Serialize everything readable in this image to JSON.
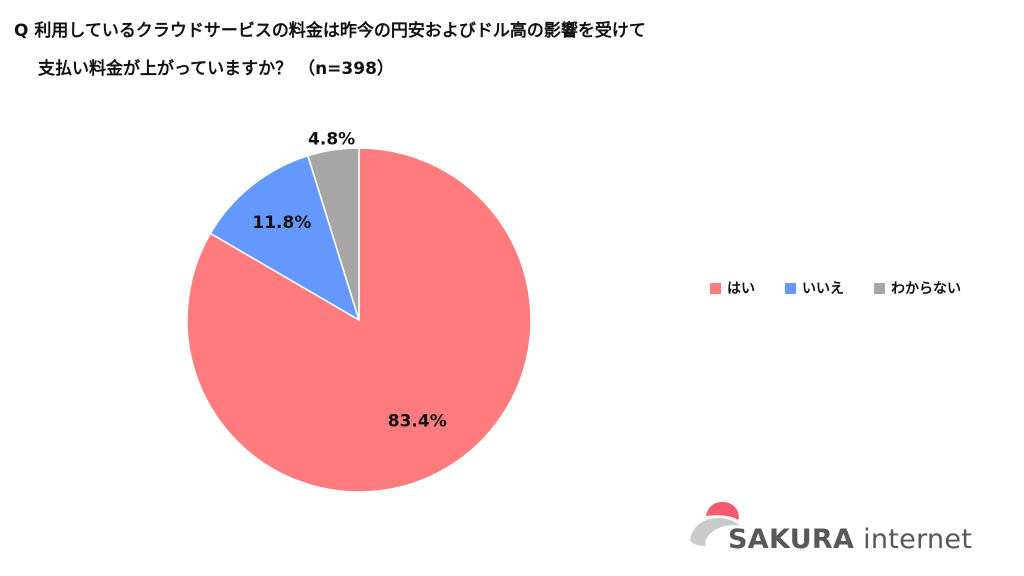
{
  "question": {
    "line1": "Q 利用しているクラウドサービスの料金は昨今の円安およびドル高の影響を受けて",
    "line2": "支払い料金が上がっていますか？ （n=398）"
  },
  "chart_data": {
    "type": "pie",
    "title": "",
    "slices": [
      {
        "label": "はい",
        "value": 83.4,
        "display": "83.4%",
        "color": "#ff7b7e"
      },
      {
        "label": "いいえ",
        "value": 11.8,
        "display": "11.8%",
        "color": "#6699ff"
      },
      {
        "label": "わからない",
        "value": 4.8,
        "display": "4.8%",
        "color": "#a6a6a6"
      }
    ],
    "legend_position": "right",
    "start": "12 o'clock, clockwise"
  },
  "legend": {
    "items": [
      {
        "label": "はい",
        "color": "#ff7b7e"
      },
      {
        "label": "いいえ",
        "color": "#6699ff"
      },
      {
        "label": "わからない",
        "color": "#a6a6a6"
      }
    ]
  },
  "logo": {
    "brand": "SAKURA",
    "suffix": " internet",
    "colors": {
      "petal": "#f25b6e",
      "swoosh": "#c9caca",
      "text": "#595757"
    }
  }
}
